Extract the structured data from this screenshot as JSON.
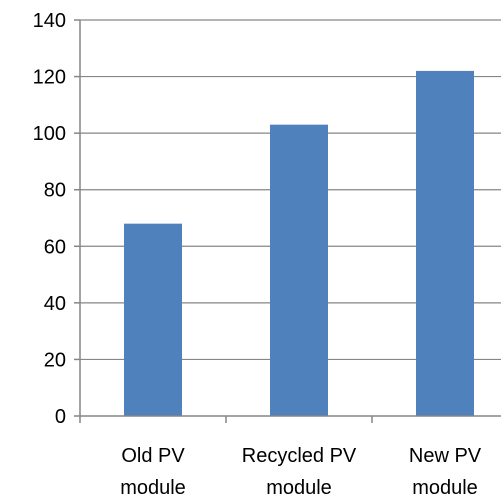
{
  "chart_data": {
    "type": "bar",
    "categories": [
      [
        "Old PV",
        "module"
      ],
      [
        "Recycled PV",
        "module"
      ],
      [
        "New PV",
        "module"
      ]
    ],
    "values": [
      68,
      103,
      122
    ],
    "ylim": [
      0,
      140
    ],
    "yticks": [
      "0",
      "20",
      "40",
      "60",
      "80",
      "100",
      "120",
      "140"
    ],
    "grid": true,
    "legend": "none",
    "colors": {
      "bar": "#4f81bd",
      "grid": "#868686",
      "axis": "#868686"
    }
  }
}
